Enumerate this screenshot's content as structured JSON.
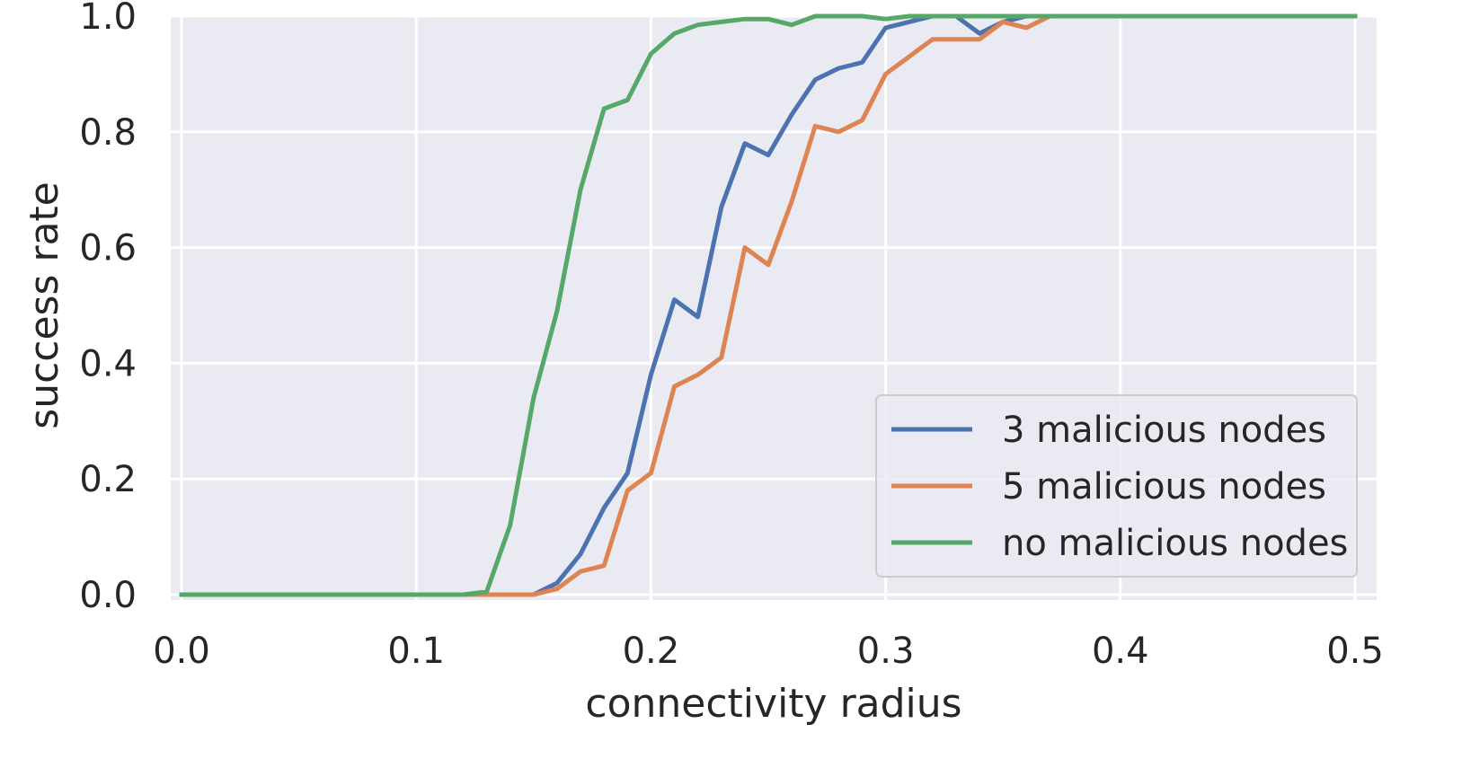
{
  "chart_data": {
    "type": "line",
    "xlabel": "connectivity radius",
    "ylabel": "success rate",
    "xlim": [
      0,
      0.5
    ],
    "ylim": [
      0,
      1
    ],
    "grid": true,
    "legend_position": "bottom-right",
    "x_ticks": [
      "0.0",
      "0.1",
      "0.2",
      "0.3",
      "0.4",
      "0.5"
    ],
    "y_ticks": [
      "0.0",
      "0.2",
      "0.4",
      "0.6",
      "0.8",
      "1.0"
    ],
    "x": [
      0.0,
      0.01,
      0.02,
      0.03,
      0.04,
      0.05,
      0.06,
      0.07,
      0.08,
      0.09,
      0.1,
      0.11,
      0.12,
      0.13,
      0.14,
      0.15,
      0.16,
      0.17,
      0.18,
      0.19,
      0.2,
      0.21,
      0.22,
      0.23,
      0.24,
      0.25,
      0.26,
      0.27,
      0.28,
      0.29,
      0.3,
      0.31,
      0.32,
      0.33,
      0.34,
      0.35,
      0.36,
      0.37,
      0.38,
      0.39,
      0.4,
      0.41,
      0.42,
      0.43,
      0.44,
      0.45,
      0.46,
      0.47,
      0.48,
      0.49,
      0.5
    ],
    "series": [
      {
        "name": "3 malicious nodes",
        "color": "#4c72b0",
        "values": [
          0,
          0,
          0,
          0,
          0,
          0,
          0,
          0,
          0,
          0,
          0,
          0,
          0,
          0,
          0,
          0,
          0.02,
          0.07,
          0.15,
          0.21,
          0.38,
          0.51,
          0.48,
          0.67,
          0.78,
          0.76,
          0.83,
          0.89,
          0.91,
          0.92,
          0.98,
          0.99,
          1.0,
          1.0,
          0.97,
          0.99,
          1.0,
          1.0,
          1.0,
          1.0,
          1.0,
          1.0,
          1.0,
          1.0,
          1.0,
          1.0,
          1.0,
          1.0,
          1.0,
          1.0,
          1.0
        ]
      },
      {
        "name": "5 malicious nodes",
        "color": "#dd8452",
        "values": [
          0,
          0,
          0,
          0,
          0,
          0,
          0,
          0,
          0,
          0,
          0,
          0,
          0,
          0,
          0,
          0,
          0.01,
          0.04,
          0.05,
          0.18,
          0.21,
          0.36,
          0.38,
          0.41,
          0.6,
          0.57,
          0.68,
          0.81,
          0.8,
          0.82,
          0.9,
          0.93,
          0.96,
          0.96,
          0.96,
          0.99,
          0.98,
          1.0,
          1.0,
          1.0,
          1.0,
          1.0,
          1.0,
          1.0,
          1.0,
          1.0,
          1.0,
          1.0,
          1.0,
          1.0,
          1.0
        ]
      },
      {
        "name": "no malicious nodes",
        "color": "#55a868",
        "values": [
          0,
          0,
          0,
          0,
          0,
          0,
          0,
          0,
          0,
          0,
          0,
          0,
          0,
          0.005,
          0.12,
          0.34,
          0.49,
          0.7,
          0.84,
          0.855,
          0.935,
          0.97,
          0.985,
          0.99,
          0.995,
          0.995,
          0.985,
          1.0,
          1.0,
          1.0,
          0.995,
          1.0,
          1.0,
          1.0,
          1.0,
          1.0,
          1.0,
          1.0,
          1.0,
          1.0,
          1.0,
          1.0,
          1.0,
          1.0,
          1.0,
          1.0,
          1.0,
          1.0,
          1.0,
          1.0,
          1.0
        ]
      }
    ]
  }
}
